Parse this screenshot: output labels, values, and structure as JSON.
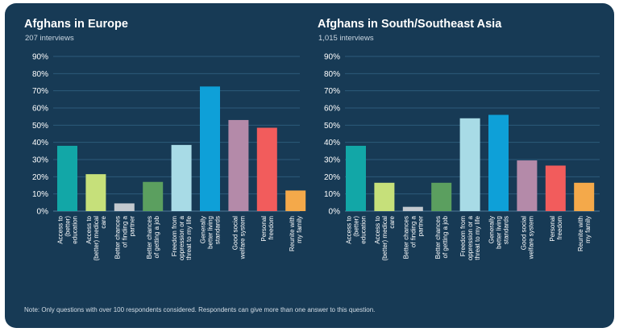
{
  "colors": {
    "background": "#173a55",
    "grid": "#2c5a7a",
    "text": "#ffffff",
    "subtext": "#c9d5e0"
  },
  "note": "Note: Only questions with over 100 respondents considered. Respondents can give more than one answer to this question.",
  "chart_data": [
    {
      "type": "bar",
      "title": "Afghans in Europe",
      "subtitle": "207 interviews",
      "categories": [
        "Access to (better) education",
        "Access to (better) medical care",
        "Better chances of finding a partner",
        "Better chances of getting a job",
        "Freedom from oppression or a threat to my life",
        "Generally better living standards",
        "Good social welfare system",
        "Personal freedom",
        "Reunite with my family"
      ],
      "category_lines": [
        [
          "Access to",
          "(better)",
          "education"
        ],
        [
          "Access to",
          "(better) medical",
          "care"
        ],
        [
          "Better chances",
          "of finding a",
          "partner"
        ],
        [
          "Better chances",
          "of getting a job"
        ],
        [
          "Freedom from",
          "oppression or a",
          "threat to my life"
        ],
        [
          "Generally",
          "better living",
          "standards"
        ],
        [
          "Good social",
          "welfare system"
        ],
        [
          "Personal",
          "freedom"
        ],
        [
          "Reunite with",
          "my family"
        ]
      ],
      "values": [
        38,
        21.5,
        4.5,
        17,
        38.5,
        72.5,
        53,
        48.5,
        12
      ],
      "bar_colors": [
        "#12a7a7",
        "#c6e07a",
        "#c3c9cf",
        "#5b9f5f",
        "#a8dbe6",
        "#0ea0d8",
        "#b48aa9",
        "#f25c5c",
        "#f4a94a"
      ],
      "yticks": [
        "0%",
        "10%",
        "20%",
        "30%",
        "40%",
        "50%",
        "60%",
        "70%",
        "80%",
        "90%"
      ],
      "ylim": [
        0,
        90
      ],
      "ylabel": "",
      "xlabel": "",
      "grid": true
    },
    {
      "type": "bar",
      "title": "Afghans in South/Southeast Asia",
      "subtitle": "1,015 interviews",
      "categories": [
        "Access to (better) education",
        "Access to (better) medical care",
        "Better chances of finding a partner",
        "Better chances of getting a job",
        "Freedom from oppression or a threat to my life",
        "Generally better living standards",
        "Good social welfare system",
        "Personal freedom",
        "Reunite with my family"
      ],
      "category_lines": [
        [
          "Access to",
          "(better)",
          "education"
        ],
        [
          "Access to",
          "(better) medical",
          "care"
        ],
        [
          "Better chances",
          "of finding a",
          "partner"
        ],
        [
          "Better chances",
          "of getting a job"
        ],
        [
          "Freedom from",
          "oppression or a",
          "threat to my life"
        ],
        [
          "Generally",
          "better living",
          "standards"
        ],
        [
          "Good social",
          "welfare system"
        ],
        [
          "Personal",
          "freedom"
        ],
        [
          "Reunite with",
          "my family"
        ]
      ],
      "values": [
        38,
        16.5,
        2.5,
        16.5,
        54,
        56,
        29.5,
        26.5,
        16.5
      ],
      "bar_colors": [
        "#12a7a7",
        "#c6e07a",
        "#c3c9cf",
        "#5b9f5f",
        "#a8dbe6",
        "#0ea0d8",
        "#b48aa9",
        "#f25c5c",
        "#f4a94a"
      ],
      "yticks": [
        "0%",
        "10%",
        "20%",
        "30%",
        "40%",
        "50%",
        "60%",
        "70%",
        "80%",
        "90%"
      ],
      "ylim": [
        0,
        90
      ],
      "ylabel": "",
      "xlabel": "",
      "grid": true
    }
  ]
}
